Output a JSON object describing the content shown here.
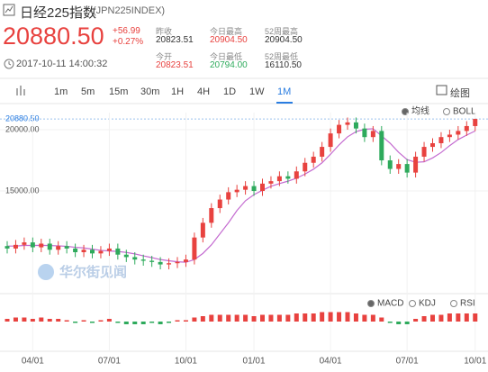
{
  "header": {
    "title": "日经225指数",
    "code": "(JPN225INDEX)",
    "price": "20880.50",
    "change": "+56.99",
    "change_pct": "+0.27%",
    "time": "2017-10-11 14:00:32",
    "stats": [
      {
        "label": "昨收",
        "value": "20823.51"
      },
      {
        "label": "今日最高",
        "value": "20904.50"
      },
      {
        "label": "52周最高",
        "value": "20904.50"
      },
      {
        "label": "今开",
        "value": "20823.51"
      },
      {
        "label": "今日最低",
        "value": "20794.00"
      },
      {
        "label": "52周最低",
        "value": "16110.50"
      }
    ]
  },
  "toolbar": {
    "tabs": [
      "1m",
      "5m",
      "15m",
      "30m",
      "1H",
      "4H",
      "1D",
      "1W",
      "1M"
    ],
    "active_index": 8,
    "draw": "绘图"
  },
  "chart_data": {
    "type": "candlestick",
    "categories": [
      null,
      null,
      null,
      "04/01",
      null,
      null,
      null,
      null,
      null,
      null,
      null,
      null,
      "07/01",
      null,
      null,
      null,
      null,
      null,
      null,
      null,
      null,
      "10/01",
      null,
      null,
      null,
      null,
      null,
      null,
      null,
      "01/01",
      null,
      null,
      null,
      null,
      null,
      null,
      null,
      null,
      "04/01",
      null,
      null,
      null,
      null,
      null,
      null,
      null,
      null,
      "07/01",
      null,
      null,
      null,
      null,
      null,
      null,
      null,
      "10/01"
    ],
    "open": [
      10500,
      10300,
      10600,
      10800,
      10400,
      10700,
      10200,
      10500,
      10300,
      10000,
      10200,
      9900,
      10100,
      10300,
      9800,
      9600,
      9400,
      9300,
      9200,
      9000,
      9100,
      9200,
      9400,
      11200,
      12400,
      13600,
      14300,
      14900,
      15100,
      15400,
      15000,
      15600,
      15800,
      16200,
      16000,
      16600,
      17300,
      17800,
      18600,
      19700,
      20400,
      20600,
      20100,
      19400,
      19900,
      17500,
      16800,
      17200,
      16500,
      17800,
      18600,
      18900,
      19400,
      19600,
      19900,
      20300
    ],
    "high": [
      10900,
      11000,
      11200,
      11200,
      11100,
      11100,
      10900,
      10900,
      10700,
      10600,
      10600,
      10500,
      10700,
      10700,
      10200,
      10000,
      9800,
      9700,
      9600,
      9500,
      9600,
      9800,
      11600,
      12800,
      14000,
      14700,
      15300,
      15500,
      15800,
      15800,
      16000,
      16200,
      16600,
      16600,
      17000,
      17700,
      18200,
      19000,
      20100,
      20800,
      21000,
      21000,
      20500,
      20300,
      20300,
      17900,
      17600,
      17600,
      18200,
      19000,
      19300,
      19800,
      20000,
      20300,
      20700,
      20904.5
    ],
    "low": [
      9900,
      9900,
      10200,
      10000,
      10000,
      9800,
      9800,
      9900,
      9600,
      9600,
      9500,
      9500,
      9700,
      9400,
      9200,
      9000,
      8900,
      8800,
      8600,
      8600,
      8700,
      8800,
      9000,
      10800,
      12000,
      13200,
      13900,
      14500,
      14700,
      14600,
      14600,
      15200,
      15400,
      15600,
      15600,
      16200,
      16900,
      17400,
      18200,
      19300,
      20000,
      19700,
      19000,
      19000,
      17100,
      16400,
      16400,
      16100,
      16100,
      17400,
      18200,
      18500,
      19000,
      19200,
      19500,
      19900
    ],
    "close": [
      10300,
      10600,
      10800,
      10400,
      10700,
      10200,
      10500,
      10300,
      10000,
      10200,
      9900,
      10100,
      10300,
      9800,
      9600,
      9400,
      9300,
      9200,
      9000,
      9100,
      9200,
      9400,
      11200,
      12400,
      13600,
      14300,
      14900,
      15100,
      15400,
      15000,
      15600,
      15800,
      16200,
      16000,
      16600,
      17300,
      17800,
      18600,
      19700,
      20400,
      20600,
      20100,
      19400,
      19900,
      17500,
      16800,
      17200,
      16500,
      17800,
      18600,
      18900,
      19400,
      19600,
      19900,
      20300,
      20880.5
    ],
    "ma": [
      10500,
      10500,
      10550,
      10550,
      10560,
      10540,
      10520,
      10480,
      10400,
      10350,
      10250,
      10150,
      10100,
      10060,
      9980,
      9860,
      9700,
      9560,
      9400,
      9300,
      9220,
      9180,
      9400,
      9900,
      10600,
      11500,
      12400,
      13400,
      14200,
      14700,
      15060,
      15380,
      15600,
      15800,
      16040,
      16380,
      16780,
      17300,
      18000,
      18760,
      19420,
      19840,
      20040,
      20080,
      19500,
      18900,
      18160,
      17560,
      17340,
      17380,
      17700,
      18140,
      18700,
      19200,
      19560,
      19900
    ],
    "ylim": [
      6690,
      21400
    ],
    "yticks": [
      {
        "value": 20000,
        "label": "20000.00"
      },
      {
        "value": 15000,
        "label": "15000.00"
      }
    ],
    "last_price": {
      "value": 20880.5,
      "label": "20880.50"
    },
    "grid": true,
    "up_color": "#e8423f",
    "down_color": "#2eaa5c",
    "ma_color": "#c46bd0",
    "legend": [
      "均线",
      "BOLL"
    ],
    "legend_selected": 0,
    "watermark": "华尔街见闻",
    "macd": {
      "legend": [
        "MACD",
        "KDJ",
        "RSI"
      ],
      "legend_selected": 0,
      "ylim": [
        -1,
        1
      ],
      "values": [
        0.2,
        0.3,
        0.3,
        0.2,
        0.3,
        0.2,
        0.2,
        0.1,
        -0.1,
        0.1,
        -0.1,
        0.1,
        0.2,
        -0.1,
        -0.2,
        -0.2,
        -0.2,
        -0.1,
        -0.2,
        -0.1,
        0.1,
        0.1,
        0.3,
        0.4,
        0.5,
        0.5,
        0.5,
        0.5,
        0.5,
        0.4,
        0.5,
        0.5,
        0.5,
        0.5,
        0.6,
        0.6,
        0.6,
        0.7,
        0.7,
        0.7,
        0.7,
        0.6,
        0.5,
        0.5,
        0.3,
        -0.1,
        -0.2,
        -0.2,
        0.2,
        0.4,
        0.5,
        0.5,
        0.6,
        0.6,
        0.6,
        0.6
      ]
    }
  }
}
